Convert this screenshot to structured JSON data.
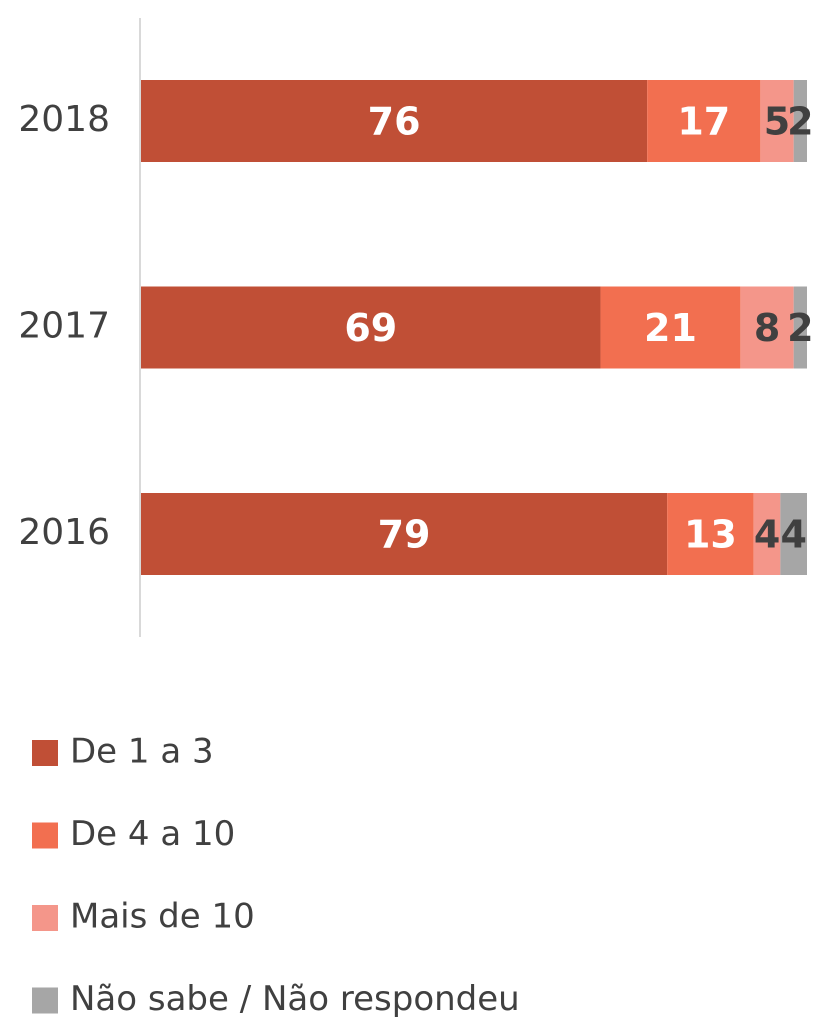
{
  "chart_data": {
    "type": "stacked-bar-horizontal",
    "categories": [
      "2018",
      "2017",
      "2016"
    ],
    "series": [
      {
        "name": "De 1 a 3",
        "color": "#c04f36",
        "label_color": "#ffffff",
        "values": [
          76,
          69,
          79
        ]
      },
      {
        "name": "De 4 a 10",
        "color": "#f26f50",
        "label_color": "#ffffff",
        "values": [
          17,
          21,
          13
        ]
      },
      {
        "name": "Mais de 10",
        "color": "#f4968a",
        "label_color": "#404040",
        "values": [
          5,
          8,
          4
        ]
      },
      {
        "name": "Não sabe / Não respondeu",
        "color": "#a6a6a6",
        "label_color": "#404040",
        "values": [
          2,
          2,
          4
        ]
      }
    ],
    "xlim": [
      0,
      100
    ],
    "legend": "bottom"
  }
}
